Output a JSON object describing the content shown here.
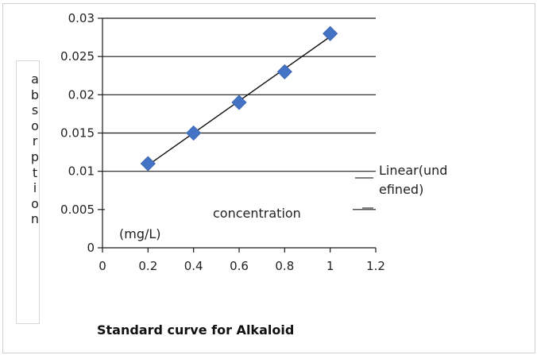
{
  "chart_data": {
    "type": "scatter",
    "title": "Standard curve for Alkaloid",
    "ylabel": "absorption",
    "xlabel_parts": [
      "concentration",
      "(mg/L)"
    ],
    "x": [
      0.2,
      0.4,
      0.6,
      0.8,
      1.0
    ],
    "y": [
      0.011,
      0.015,
      0.019,
      0.023,
      0.028
    ],
    "xlim": [
      0,
      1.2
    ],
    "ylim": [
      0,
      0.03
    ],
    "x_ticks": [
      "0",
      "0.2",
      "0.4",
      "0.6",
      "0.8",
      "1",
      "1.2"
    ],
    "y_ticks": [
      "0",
      "0.005",
      "0.01",
      "0.015",
      "0.02",
      "0.025",
      "0.03"
    ],
    "trendline": {
      "label_line1": "Linear(und",
      "label_line2": "efined)",
      "x_range": [
        0.2,
        1.0
      ]
    },
    "grid": "horizontal",
    "legend_position": "right",
    "marker_color": "#4472c4"
  }
}
